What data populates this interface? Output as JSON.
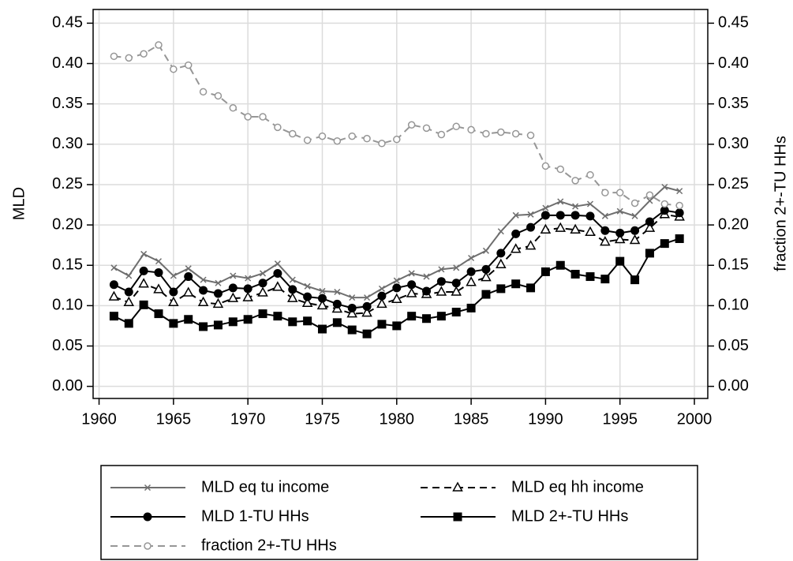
{
  "chart_data": {
    "type": "line",
    "ylabel": "MLD",
    "y2label": "fraction 2+-TU HHs",
    "x": [
      1961,
      1962,
      1963,
      1964,
      1965,
      1966,
      1967,
      1968,
      1969,
      1970,
      1971,
      1972,
      1973,
      1974,
      1975,
      1976,
      1977,
      1978,
      1979,
      1980,
      1981,
      1982,
      1983,
      1984,
      1985,
      1986,
      1987,
      1988,
      1989,
      1990,
      1991,
      1992,
      1993,
      1994,
      1995,
      1996,
      1997,
      1998,
      1999
    ],
    "xlim": [
      1959.6,
      2000.9
    ],
    "xticks": [
      1960,
      1965,
      1970,
      1975,
      1980,
      1985,
      1990,
      1995,
      2000
    ],
    "ylim": [
      -0.015,
      0.467
    ],
    "yticks": [
      {
        "value": 0,
        "label": "0.00"
      },
      {
        "value": 0.05,
        "label": "0.05"
      },
      {
        "value": 0.1,
        "label": "0.10"
      },
      {
        "value": 0.15,
        "label": "0.15"
      },
      {
        "value": 0.2,
        "label": "0.20"
      },
      {
        "value": 0.25,
        "label": "0.25"
      },
      {
        "value": 0.3,
        "label": "0.30"
      },
      {
        "value": 0.35,
        "label": "0.35"
      },
      {
        "value": 0.4,
        "label": "0.40"
      },
      {
        "value": 0.45,
        "label": "0.45"
      }
    ],
    "y2lim": [
      -0.015,
      0.467
    ],
    "y2ticks": [
      {
        "value": 0,
        "label": "0.00"
      },
      {
        "value": 0.05,
        "label": "0.05"
      },
      {
        "value": 0.1,
        "label": "0.10"
      },
      {
        "value": 0.15,
        "label": "0.15"
      },
      {
        "value": 0.2,
        "label": "0.20"
      },
      {
        "value": 0.25,
        "label": "0.25"
      },
      {
        "value": 0.3,
        "label": "0.30"
      },
      {
        "value": 0.35,
        "label": "0.35"
      },
      {
        "value": 0.4,
        "label": "0.40"
      },
      {
        "value": 0.45,
        "label": "0.45"
      }
    ],
    "grid": true,
    "series": [
      {
        "name": "MLD eq tu income",
        "color": "#6e6e6e",
        "linestyle": "solid",
        "marker": "x",
        "values": [
          0.147,
          0.137,
          0.164,
          0.155,
          0.137,
          0.146,
          0.132,
          0.128,
          0.137,
          0.134,
          0.14,
          0.152,
          0.132,
          0.124,
          0.118,
          0.117,
          0.11,
          0.11,
          0.121,
          0.131,
          0.14,
          0.136,
          0.145,
          0.147,
          0.159,
          0.168,
          0.192,
          0.212,
          0.213,
          0.221,
          0.229,
          0.223,
          0.226,
          0.211,
          0.217,
          0.211,
          0.23,
          0.247,
          0.242
        ]
      },
      {
        "name": "MLD eq hh income",
        "color": "#000000",
        "linestyle": "dashed",
        "marker": "triangle-open",
        "values": [
          0.111,
          0.104,
          0.127,
          0.12,
          0.104,
          0.116,
          0.104,
          0.102,
          0.109,
          0.11,
          0.116,
          0.123,
          0.109,
          0.103,
          0.1,
          0.096,
          0.09,
          0.091,
          0.102,
          0.108,
          0.115,
          0.114,
          0.117,
          0.117,
          0.129,
          0.135,
          0.151,
          0.17,
          0.174,
          0.194,
          0.196,
          0.194,
          0.191,
          0.179,
          0.182,
          0.181,
          0.196,
          0.213,
          0.21
        ]
      },
      {
        "name": "MLD 1-TU HHs",
        "color": "#000000",
        "linestyle": "solid",
        "marker": "circle",
        "values": [
          0.126,
          0.117,
          0.143,
          0.141,
          0.117,
          0.136,
          0.119,
          0.115,
          0.122,
          0.121,
          0.128,
          0.14,
          0.12,
          0.111,
          0.109,
          0.102,
          0.097,
          0.099,
          0.112,
          0.122,
          0.126,
          0.118,
          0.13,
          0.128,
          0.142,
          0.145,
          0.165,
          0.189,
          0.197,
          0.212,
          0.212,
          0.212,
          0.211,
          0.193,
          0.19,
          0.193,
          0.204,
          0.218,
          0.215
        ]
      },
      {
        "name": "MLD 2+-TU HHs",
        "color": "#000000",
        "linestyle": "solid",
        "marker": "square",
        "values": [
          0.087,
          0.078,
          0.101,
          0.09,
          0.078,
          0.083,
          0.074,
          0.076,
          0.08,
          0.083,
          0.09,
          0.087,
          0.08,
          0.081,
          0.071,
          0.079,
          0.07,
          0.065,
          0.077,
          0.075,
          0.087,
          0.084,
          0.087,
          0.092,
          0.097,
          0.114,
          0.121,
          0.127,
          0.122,
          0.142,
          0.15,
          0.139,
          0.136,
          0.133,
          0.155,
          0.132,
          0.165,
          0.177,
          0.183
        ]
      },
      {
        "name": "fraction 2+-TU HHs",
        "color": "#969696",
        "linestyle": "dashed",
        "marker": "circle-open",
        "axis": "y2",
        "values": [
          0.409,
          0.407,
          0.412,
          0.423,
          0.393,
          0.398,
          0.365,
          0.36,
          0.345,
          0.334,
          0.334,
          0.321,
          0.313,
          0.305,
          0.31,
          0.304,
          0.31,
          0.307,
          0.301,
          0.306,
          0.324,
          0.32,
          0.312,
          0.322,
          0.318,
          0.313,
          0.315,
          0.313,
          0.311,
          0.273,
          0.269,
          0.255,
          0.262,
          0.24,
          0.24,
          0.227,
          0.237,
          0.226,
          0.224
        ]
      }
    ]
  }
}
